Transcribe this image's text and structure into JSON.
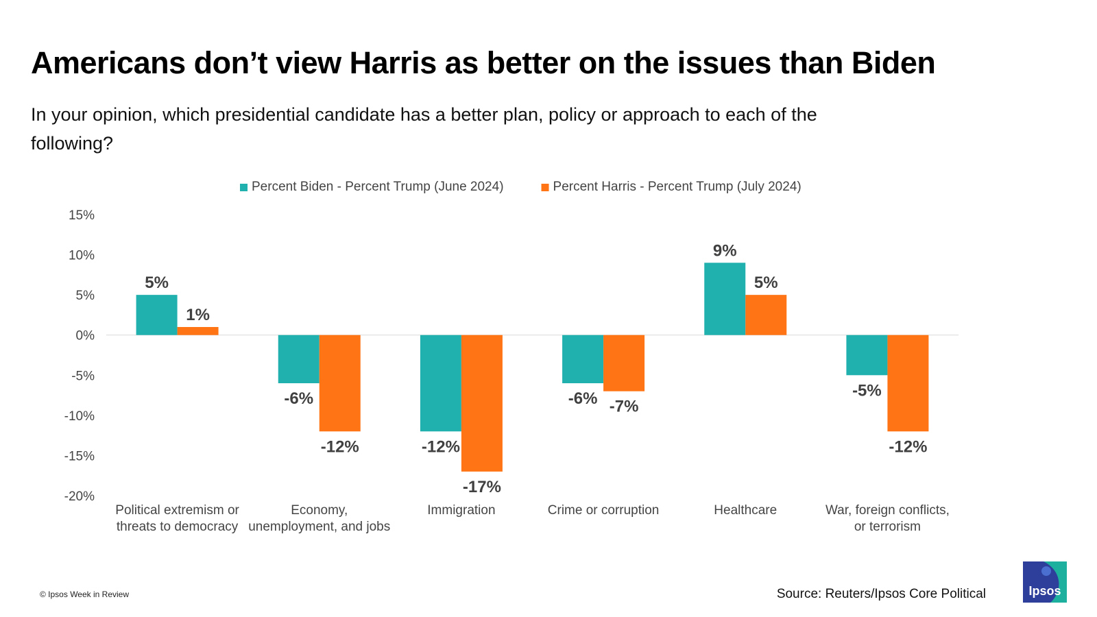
{
  "title": "Americans don’t view Harris as better on the issues than Biden",
  "subtitle": "In your opinion, which presidential candidate has a better plan, policy or approach to each of the following?",
  "footer": {
    "copyright": "© Ipsos Week in Review",
    "source": "Source: Reuters/Ipsos Core Political",
    "logo_text": "Ipsos"
  },
  "colors": {
    "biden": "#20B0AE",
    "harris": "#FF7415",
    "logo_blue": "#2D3F9A",
    "logo_teal": "#1EB09E"
  },
  "chart_data": {
    "type": "bar",
    "title": "Americans don’t view Harris as better on the issues than Biden",
    "subtitle": "In your opinion, which presidential candidate has a better plan, policy or approach to each of the following?",
    "categories": [
      [
        "Political extremism or",
        "threats to democracy"
      ],
      [
        "Economy,",
        "unemployment, and jobs"
      ],
      [
        "Immigration"
      ],
      [
        "Crime or corruption"
      ],
      [
        "Healthcare"
      ],
      [
        "War, foreign conflicts,",
        "or terrorism"
      ]
    ],
    "series": [
      {
        "name": "Percent Biden - Percent Trump (June 2024)",
        "values": [
          5,
          -6,
          -12,
          -6,
          9,
          -5
        ],
        "labels": [
          "5%",
          "-6%",
          "-12%",
          "-6%",
          "9%",
          "-5%"
        ]
      },
      {
        "name": "Percent Harris - Percent Trump (July 2024)",
        "values": [
          1,
          -12,
          -17,
          -7,
          5,
          -12
        ],
        "labels": [
          "1%",
          "-12%",
          "-17%",
          "-7%",
          "5%",
          "-12%"
        ]
      }
    ],
    "yticks": [
      15,
      10,
      5,
      0,
      -5,
      -10,
      -15,
      -20
    ],
    "ytick_labels": [
      "15%",
      "10%",
      "5%",
      "0%",
      "-5%",
      "-10%",
      "-15%",
      "-20%"
    ],
    "ylim": [
      -20,
      15
    ],
    "xlabel": "",
    "ylabel": "",
    "grid": false,
    "legend": "top-center"
  }
}
